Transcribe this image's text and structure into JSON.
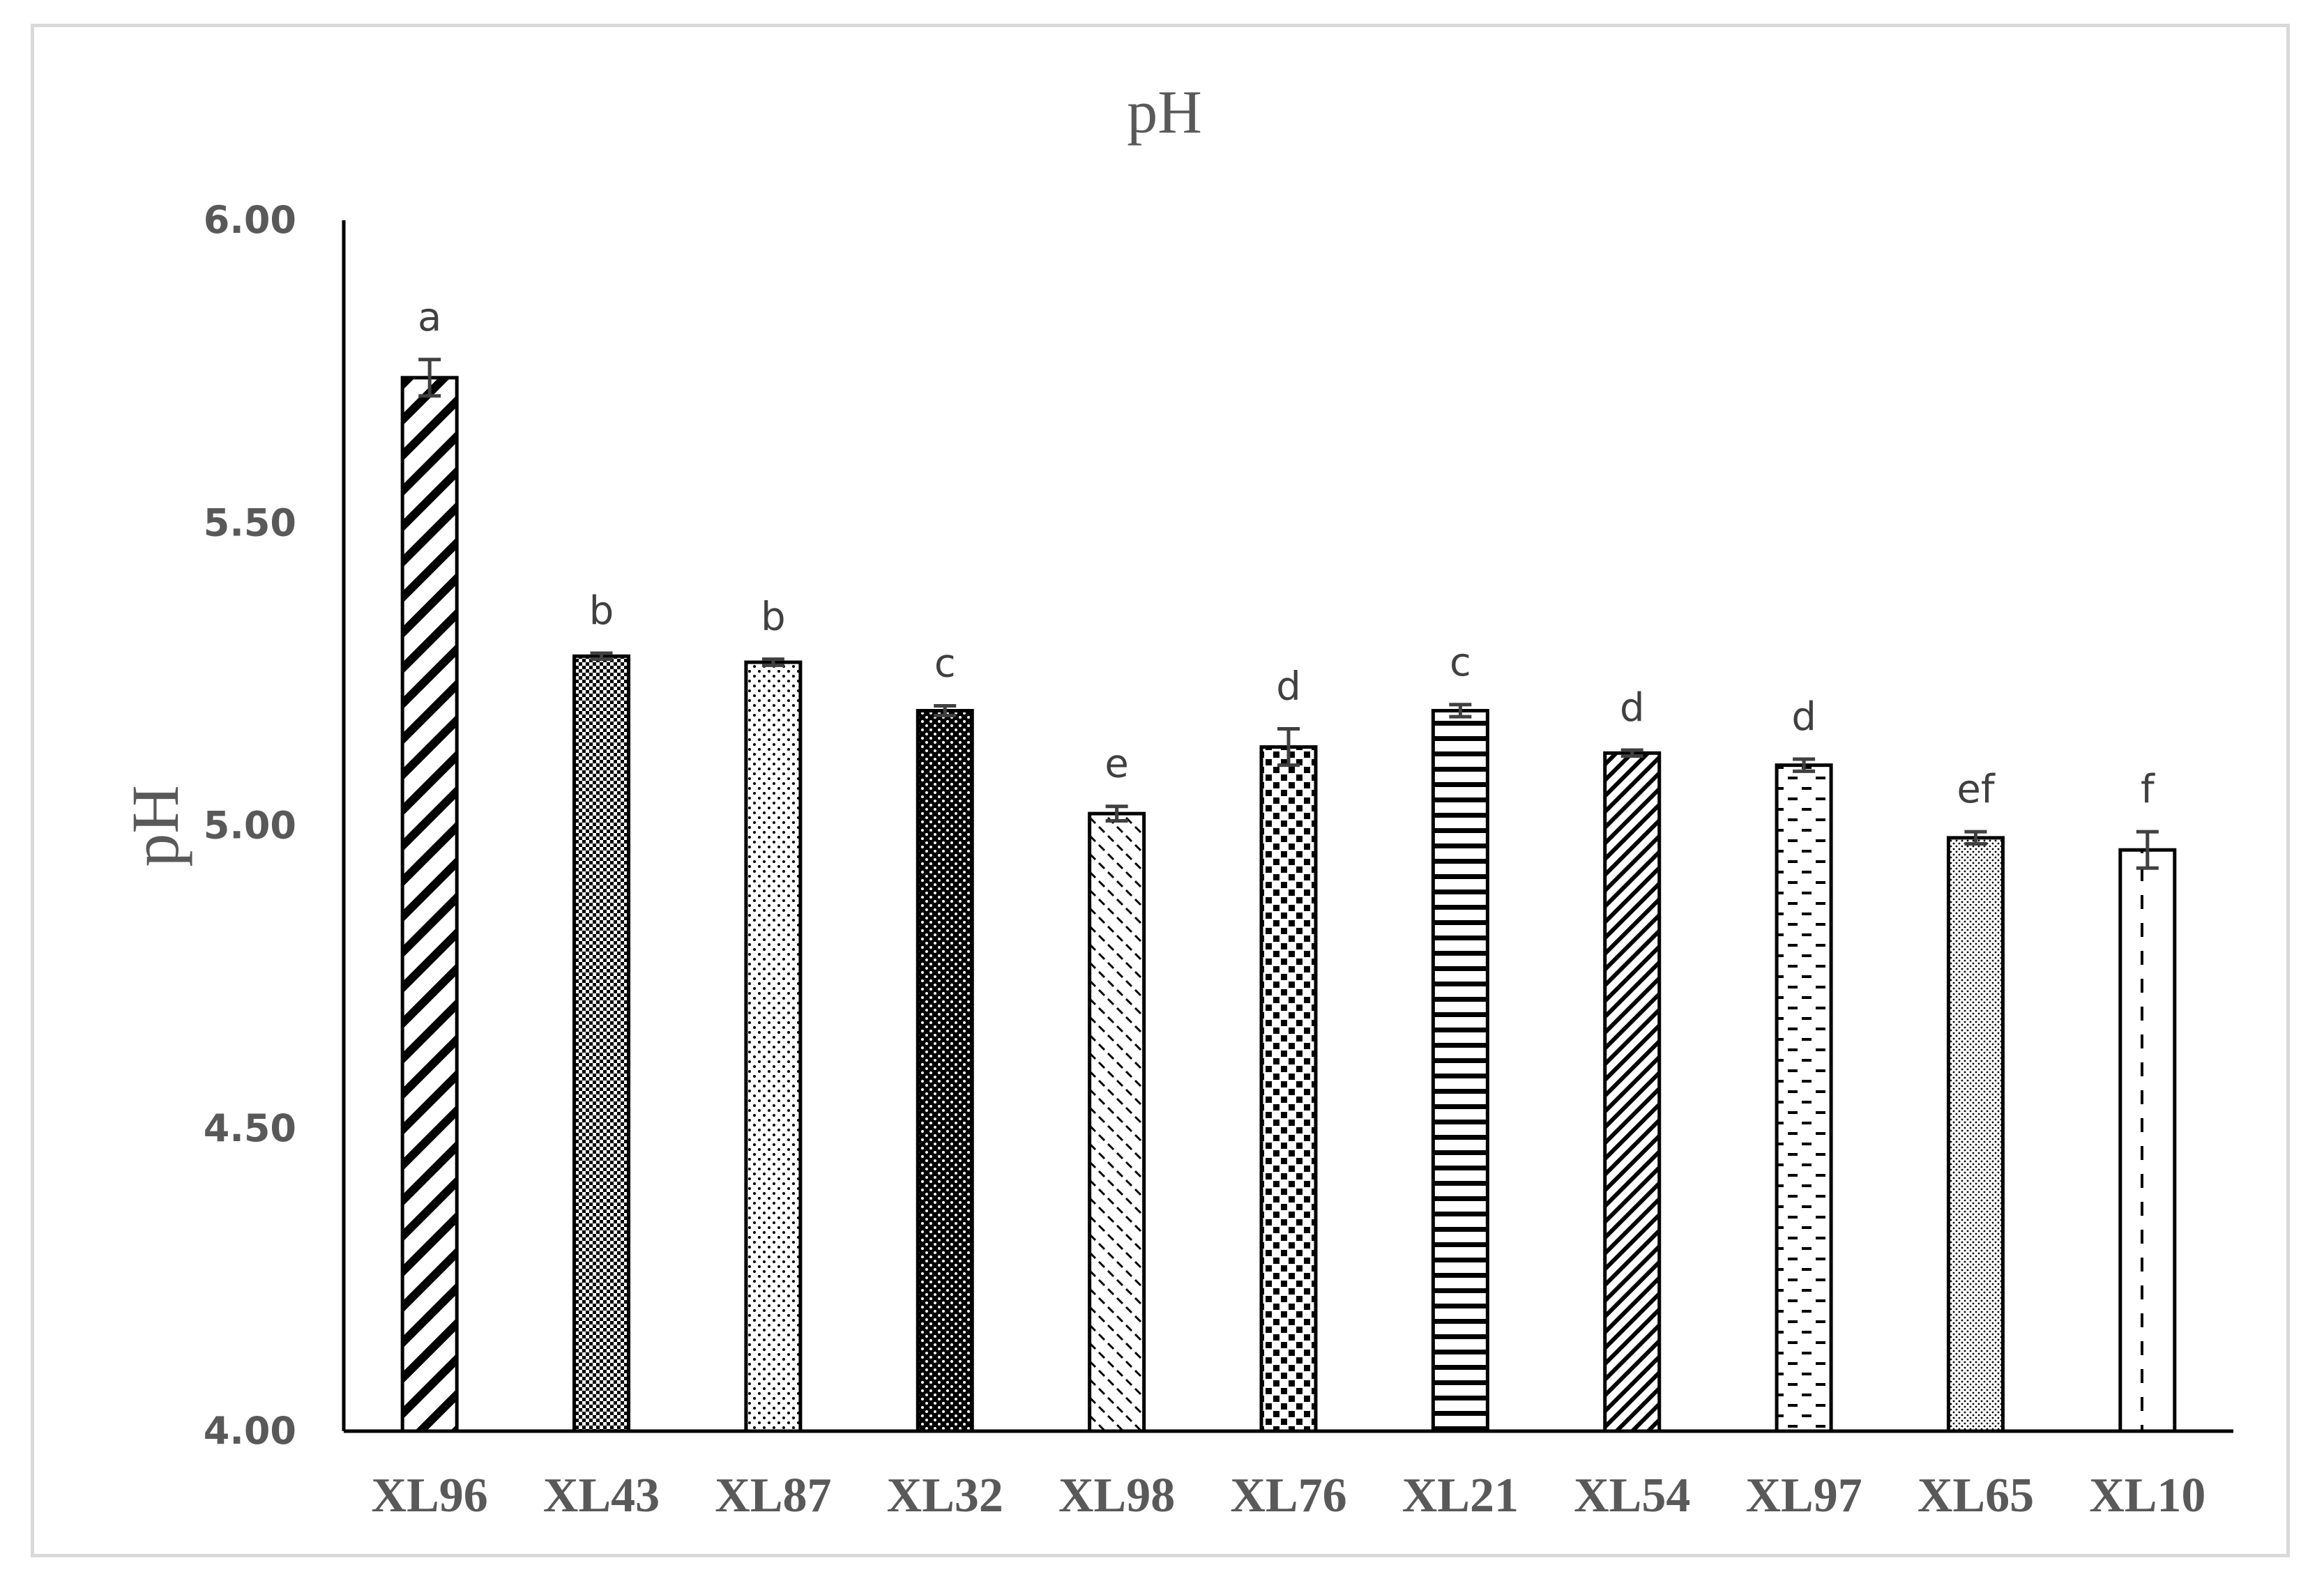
{
  "chart_data": {
    "type": "bar",
    "title": "pH",
    "xlabel": "",
    "ylabel": "pH",
    "ylim": [
      4.0,
      6.0
    ],
    "yticks": [
      "4.00",
      "4.50",
      "5.00",
      "5.50",
      "6.00"
    ],
    "grid": false,
    "legend": "none",
    "categories": [
      "XL96",
      "XL43",
      "XL87",
      "XL32",
      "XL98",
      "XL76",
      "XL21",
      "XL54",
      "XL97",
      "XL65",
      "XL10"
    ],
    "values": [
      5.74,
      5.28,
      5.27,
      5.19,
      5.02,
      5.13,
      5.19,
      5.12,
      5.1,
      4.98,
      4.96
    ],
    "errors": [
      0.03,
      0.005,
      0.005,
      0.008,
      0.012,
      0.03,
      0.01,
      0.005,
      0.01,
      0.01,
      0.03
    ],
    "significance_labels": [
      "a",
      "b",
      "b",
      "c",
      "e",
      "d",
      "c",
      "d",
      "d",
      "ef",
      "f"
    ],
    "patterns": [
      "wide-diagonal",
      "checker-dense",
      "sparse-dots",
      "dark-dots",
      "dashed-diagonal",
      "large-checker",
      "horizontal-lines",
      "narrow-diagonal",
      "horizontal-dashes",
      "fine-dots",
      "vertical-dashes"
    ],
    "colors": {
      "bar_stroke": "#000000",
      "axis": "#000000",
      "text": "#595959",
      "error_bar": "#404040",
      "border": "#d9d9d9"
    }
  }
}
